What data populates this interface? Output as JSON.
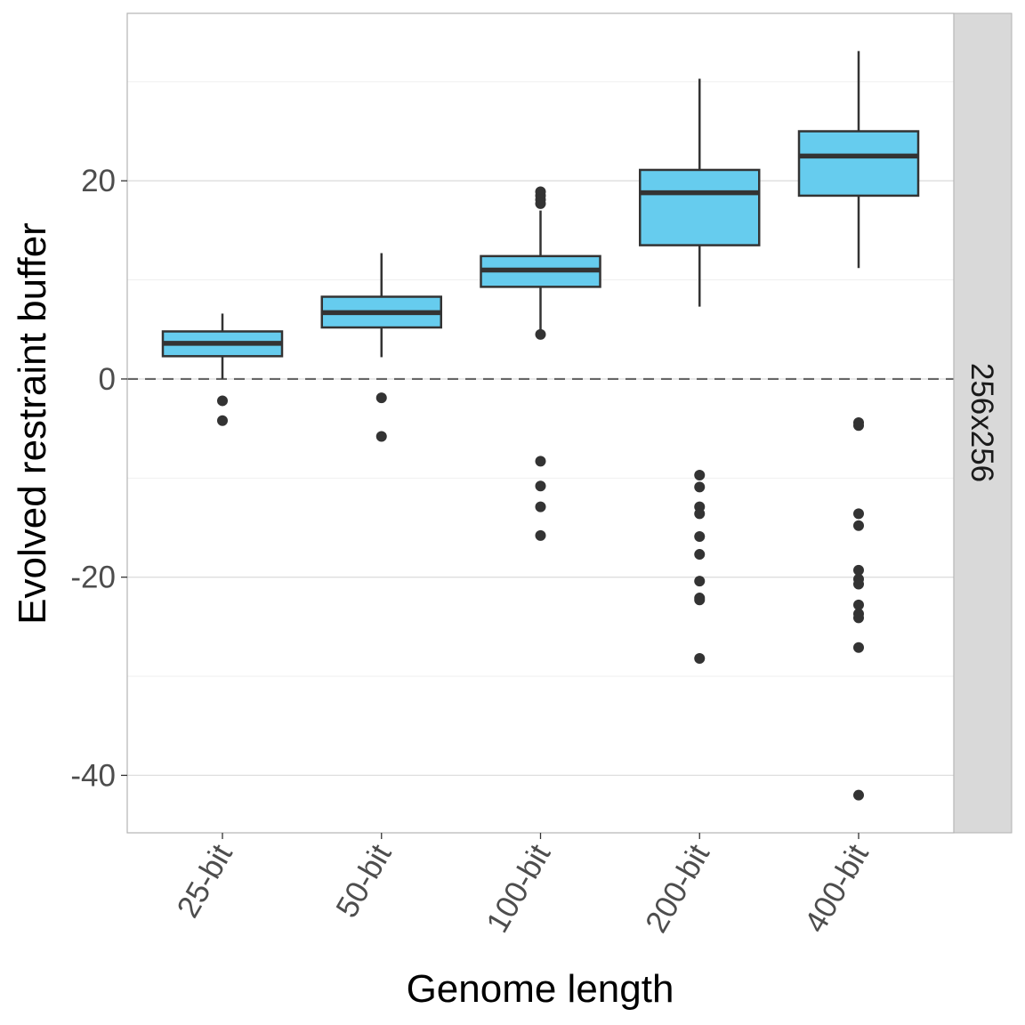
{
  "chart_data": {
    "type": "box",
    "title": "",
    "xlabel": "Genome length",
    "ylabel": "Evolved restraint buffer",
    "facet_label": "256x256",
    "categories": [
      "25-bit",
      "50-bit",
      "100-bit",
      "200-bit",
      "400-bit"
    ],
    "ylim": [
      -45.8,
      36.9
    ],
    "yticks": [
      -40,
      -20,
      0,
      20
    ],
    "ytick_labels": [
      "-40",
      "-20",
      "0",
      "20"
    ],
    "reference_line": {
      "y": 0,
      "style": "dashed"
    },
    "grid": true,
    "fill_color": "#66CCEE",
    "line_color": "#333333",
    "boxes": [
      {
        "category": "25-bit",
        "whisker_low": 0.0,
        "q1": 2.3,
        "median": 3.6,
        "q3": 4.8,
        "whisker_high": 6.6,
        "outliers": [
          -2.2,
          -4.2
        ]
      },
      {
        "category": "50-bit",
        "whisker_low": 2.2,
        "q1": 5.2,
        "median": 6.7,
        "q3": 8.3,
        "whisker_high": 12.7,
        "outliers": [
          -1.9,
          -5.8
        ]
      },
      {
        "category": "100-bit",
        "whisker_low": 4.8,
        "q1": 9.3,
        "median": 11.0,
        "q3": 12.4,
        "whisker_high": 17.0,
        "outliers": [
          18.9,
          18.5,
          18.1,
          17.7,
          4.5,
          -8.3,
          -10.8,
          -12.9,
          -15.8
        ]
      },
      {
        "category": "200-bit",
        "whisker_low": 7.3,
        "q1": 13.5,
        "median": 18.8,
        "q3": 21.1,
        "whisker_high": 30.3,
        "outliers": [
          -9.7,
          -10.9,
          -12.9,
          -13.6,
          -15.9,
          -17.7,
          -20.4,
          -22.1,
          -22.3,
          -28.2
        ]
      },
      {
        "category": "400-bit",
        "whisker_low": 11.2,
        "q1": 18.5,
        "median": 22.5,
        "q3": 25.0,
        "whisker_high": 33.1,
        "outliers": [
          -4.4,
          -4.7,
          -13.6,
          -14.8,
          -19.3,
          -20.2,
          -20.7,
          -22.8,
          -23.7,
          -24.1,
          -27.1,
          -42.0
        ]
      }
    ]
  }
}
